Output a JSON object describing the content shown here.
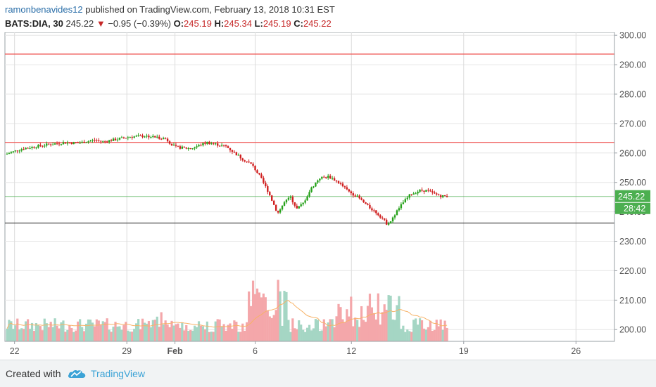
{
  "header": {
    "author": "ramonbenavides12",
    "published": " published on TradingView.com, February 13, 2018 10:31 EST",
    "symbol": "BATS:DIA, 30",
    "last": "245.22",
    "change": "−0.95 (−0.39%)",
    "open_label": "O:",
    "open": "245.19",
    "high_label": "H:",
    "high": "245.34",
    "low_label": "L:",
    "low": "245.19",
    "close_label": "C:",
    "close": "245.22"
  },
  "footer": {
    "created_with": "Created with",
    "brand": "TradingView"
  },
  "chart_data": {
    "type": "candlestick",
    "timeframe": "30 min",
    "y_range": [
      196,
      301
    ],
    "y_ticks": [
      "300.00",
      "290.00",
      "280.00",
      "270.00",
      "260.00",
      "250.00",
      "240.00",
      "230.00",
      "220.00",
      "210.00",
      "200.00"
    ],
    "x_ticks": [
      {
        "label": "22",
        "day": 0
      },
      {
        "label": "29",
        "day": 7
      },
      {
        "label": "Feb",
        "day": 10,
        "bold": true
      },
      {
        "label": "6",
        "day": 15
      },
      {
        "label": "12",
        "day": 21
      },
      {
        "label": "19",
        "day": 28
      },
      {
        "label": "26",
        "day": 35
      }
    ],
    "x_domain": [
      -0.6,
      37.4
    ],
    "horizontal_lines": [
      {
        "price": 293.6,
        "color": "#ef5350"
      },
      {
        "price": 263.6,
        "color": "#ef5350"
      },
      {
        "price": 245.22,
        "color": "#4caf50"
      },
      {
        "price": 236.2,
        "color": "#333333"
      }
    ],
    "price_label": {
      "value": "245.22",
      "color": "#4caf50"
    },
    "countdown_label": {
      "value": "28:42",
      "color": "#4caf50"
    },
    "price_path": [
      [
        -0.6,
        259.5
      ],
      [
        0.5,
        261.5
      ],
      [
        2,
        262.8
      ],
      [
        3,
        263.5
      ],
      [
        4,
        263.4
      ],
      [
        5,
        264.4
      ],
      [
        5.5,
        263.8
      ],
      [
        7.2,
        265.5
      ],
      [
        8.2,
        265.8
      ],
      [
        9.4,
        264.9
      ],
      [
        10,
        262
      ],
      [
        11,
        261.5
      ],
      [
        12,
        263.6
      ],
      [
        13.2,
        262.2
      ],
      [
        14.2,
        258
      ],
      [
        14.8,
        256
      ],
      [
        15.3,
        252
      ],
      [
        15.8,
        247
      ],
      [
        16.2,
        242
      ],
      [
        16.4,
        239.5
      ],
      [
        16.8,
        243
      ],
      [
        17.2,
        245
      ],
      [
        17.6,
        241
      ],
      [
        18,
        243
      ],
      [
        18.5,
        248
      ],
      [
        19,
        251.5
      ],
      [
        19.6,
        252
      ],
      [
        20.2,
        250
      ],
      [
        20.8,
        247
      ],
      [
        21.4,
        245
      ],
      [
        22,
        242
      ],
      [
        22.5,
        240
      ],
      [
        22.9,
        238
      ],
      [
        23.2,
        236
      ],
      [
        23.5,
        237
      ],
      [
        23.8,
        240
      ],
      [
        24.2,
        243
      ],
      [
        24.7,
        246
      ],
      [
        25.3,
        247.3
      ],
      [
        25.7,
        247.2
      ],
      [
        26.2,
        246
      ],
      [
        26.6,
        245.4
      ],
      [
        27,
        245.22
      ]
    ],
    "volume": {
      "max": 1.0,
      "bars_up_color": "#a5d6c4",
      "bars_down_color": "#f4a7aa",
      "ma_color": "#f7b267"
    }
  }
}
